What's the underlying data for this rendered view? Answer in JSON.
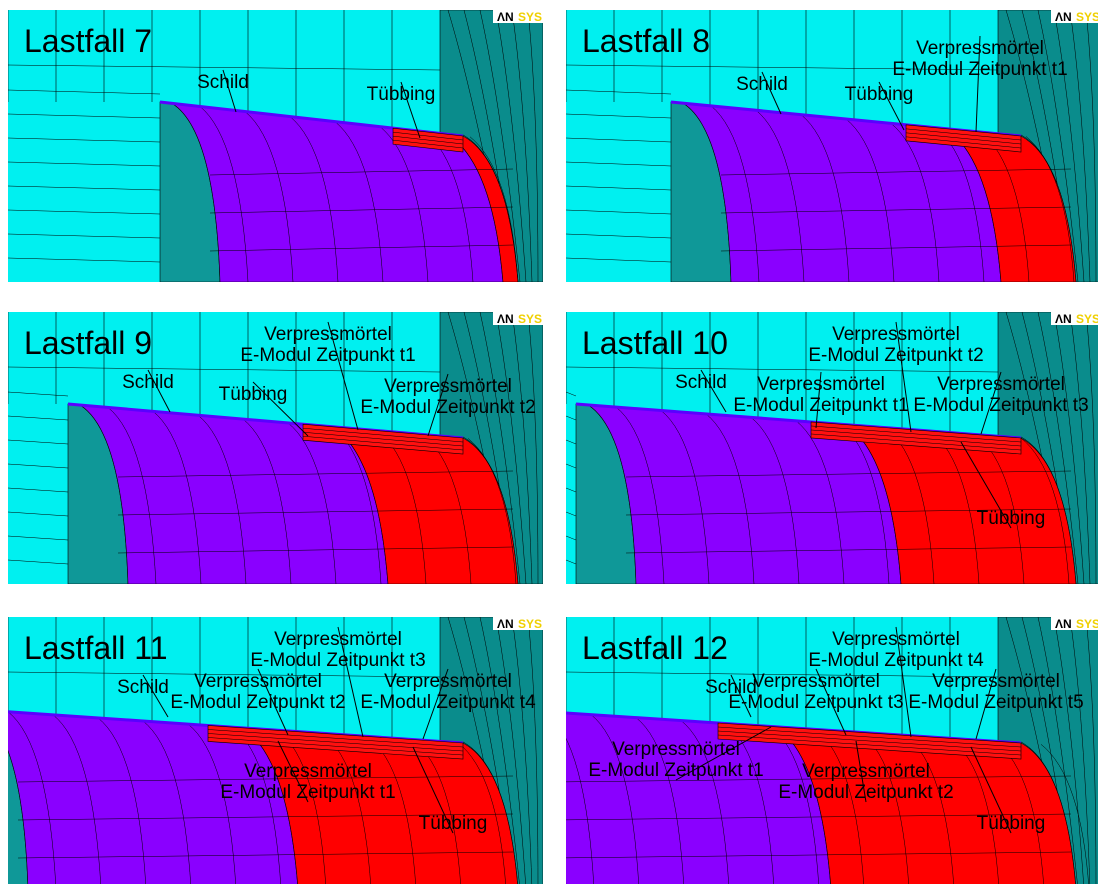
{
  "logo": [
    "ΛN",
    "SYS"
  ],
  "panels": [
    {
      "title": "Lastfall 7",
      "labels": [
        {
          "lines": [
            "Schild"
          ]
        },
        {
          "lines": [
            "Tübbing"
          ]
        }
      ]
    },
    {
      "title": "Lastfall 8",
      "labels": [
        {
          "lines": [
            "Schild"
          ]
        },
        {
          "lines": [
            "Tübbing"
          ]
        },
        {
          "lines": [
            "Verpressmörtel",
            "E-Modul Zeitpunkt t1"
          ]
        }
      ]
    },
    {
      "title": "Lastfall 9",
      "labels": [
        {
          "lines": [
            "Schild"
          ]
        },
        {
          "lines": [
            "Tübbing"
          ]
        },
        {
          "lines": [
            "Verpressmörtel",
            "E-Modul Zeitpunkt t1"
          ]
        },
        {
          "lines": [
            "Verpressmörtel",
            "E-Modul Zeitpunkt t2"
          ]
        }
      ]
    },
    {
      "title": "Lastfall 10",
      "labels": [
        {
          "lines": [
            "Schild"
          ]
        },
        {
          "lines": [
            "Verpressmörtel",
            "E-Modul Zeitpunkt t1"
          ]
        },
        {
          "lines": [
            "Verpressmörtel",
            "E-Modul Zeitpunkt t2"
          ]
        },
        {
          "lines": [
            "Verpressmörtel",
            "E-Modul Zeitpunkt t3"
          ]
        },
        {
          "lines": [
            "Tübbing"
          ]
        }
      ]
    },
    {
      "title": "Lastfall 11",
      "labels": [
        {
          "lines": [
            "Schild"
          ]
        },
        {
          "lines": [
            "Verpressmörtel",
            "E-Modul Zeitpunkt t3"
          ]
        },
        {
          "lines": [
            "Verpressmörtel",
            "E-Modul Zeitpunkt t2"
          ]
        },
        {
          "lines": [
            "Verpressmörtel",
            "E-Modul Zeitpunkt t4"
          ]
        },
        {
          "lines": [
            "Verpressmörtel",
            "E-Modul Zeitpunkt t1"
          ]
        },
        {
          "lines": [
            "Tübbing"
          ]
        }
      ]
    },
    {
      "title": "Lastfall 12",
      "labels": [
        {
          "lines": [
            "Schild"
          ]
        },
        {
          "lines": [
            "Verpressmörtel",
            "E-Modul Zeitpunkt t4"
          ]
        },
        {
          "lines": [
            "Verpressmörtel",
            "E-Modul Zeitpunkt t3"
          ]
        },
        {
          "lines": [
            "Verpressmörtel",
            "E-Modul Zeitpunkt t5"
          ]
        },
        {
          "lines": [
            "Verpressmörtel",
            "E-Modul Zeitpunkt t1"
          ]
        },
        {
          "lines": [
            "Verpressmörtel",
            "E-Modul Zeitpunkt t2"
          ]
        },
        {
          "lines": [
            "Tübbing"
          ]
        }
      ]
    }
  ]
}
